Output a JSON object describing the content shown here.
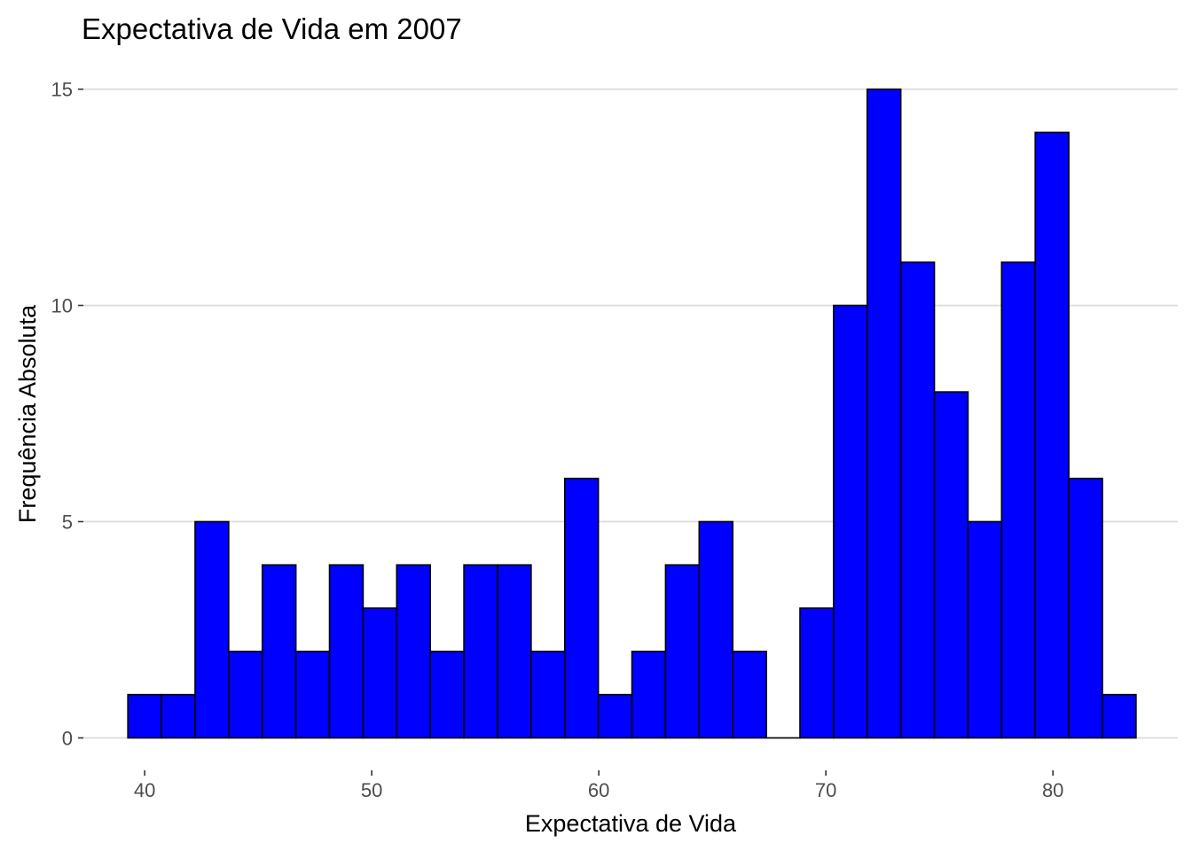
{
  "chart_data": {
    "type": "bar",
    "title": "Expectativa de Vida em 2007",
    "xlabel": "Expectativa de Vida",
    "ylabel": "Frequência Absoluta",
    "bar_fill": "#0000ff",
    "bar_outline": "#000000",
    "grid": true,
    "xlim": [
      37.3,
      85.5
    ],
    "ylim": [
      -0.75,
      15.75
    ],
    "x_ticks": [
      40,
      50,
      60,
      70,
      80
    ],
    "y_ticks": [
      0,
      5,
      10,
      15
    ],
    "bin_width": 1.48,
    "bins": [
      {
        "x": 40.0,
        "count": 1
      },
      {
        "x": 41.48,
        "count": 1
      },
      {
        "x": 42.96,
        "count": 5
      },
      {
        "x": 44.44,
        "count": 2
      },
      {
        "x": 45.92,
        "count": 4
      },
      {
        "x": 47.4,
        "count": 2
      },
      {
        "x": 48.88,
        "count": 4
      },
      {
        "x": 50.36,
        "count": 3
      },
      {
        "x": 51.84,
        "count": 4
      },
      {
        "x": 53.32,
        "count": 2
      },
      {
        "x": 54.8,
        "count": 4
      },
      {
        "x": 56.28,
        "count": 4
      },
      {
        "x": 57.76,
        "count": 2
      },
      {
        "x": 59.24,
        "count": 6
      },
      {
        "x": 60.72,
        "count": 1
      },
      {
        "x": 62.2,
        "count": 2
      },
      {
        "x": 63.68,
        "count": 4
      },
      {
        "x": 65.16,
        "count": 5
      },
      {
        "x": 66.64,
        "count": 2
      },
      {
        "x": 68.12,
        "count": 0
      },
      {
        "x": 69.6,
        "count": 3
      },
      {
        "x": 71.08,
        "count": 10
      },
      {
        "x": 72.56,
        "count": 15
      },
      {
        "x": 74.04,
        "count": 11
      },
      {
        "x": 75.52,
        "count": 8
      },
      {
        "x": 77.0,
        "count": 5
      },
      {
        "x": 78.48,
        "count": 11
      },
      {
        "x": 79.96,
        "count": 14
      },
      {
        "x": 81.44,
        "count": 6
      },
      {
        "x": 82.92,
        "count": 1
      }
    ]
  }
}
